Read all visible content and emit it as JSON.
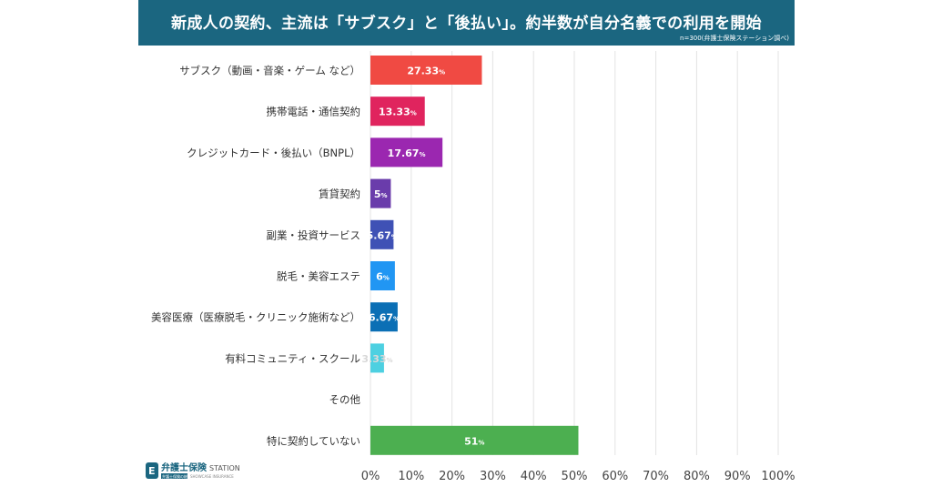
{
  "header": {
    "title": "新成人の契約、主流は「サブスク」と「後払い」。約半数が自分名義での利用を開始",
    "note": "n=300(弁護士保険ステーション調べ)"
  },
  "logo": {
    "text_main": "弁護士保険",
    "text_station": "STATION",
    "text_sub": "弁護士保険の総合サイト",
    "text_sub_en": "SHOWCASE INSURANCE"
  },
  "colors": {
    "header_bg": "#1b6680",
    "grid": "#e3e3e3"
  },
  "chart_data": {
    "type": "bar",
    "orientation": "horizontal",
    "categories": [
      "サブスク（動画・音楽・ゲーム など）",
      "携帯電話・通信契約",
      "クレジットカード・後払い（BNPL）",
      "賃貸契約",
      "副業・投資サービス",
      "脱毛・美容エステ",
      "美容医療（医療脱毛・クリニック施術など）",
      "有料コミュニティ・スクール",
      "その他",
      "特に契約していない"
    ],
    "values": [
      27.33,
      13.33,
      17.67,
      5,
      5.67,
      6,
      6.67,
      3.33,
      0,
      51
    ],
    "value_labels": [
      "27.33",
      "13.33",
      "17.67",
      "5",
      "5.67",
      "6",
      "6.67",
      "3.33",
      "",
      "51"
    ],
    "unit": "%",
    "colors": [
      "#f04a43",
      "#e0245e",
      "#9b27b0",
      "#6a3cab",
      "#3f51b5",
      "#2196f3",
      "#0b6fb5",
      "#4dd0e1",
      "#cccccc",
      "#4caf50"
    ],
    "xlim": [
      0,
      100
    ],
    "xticks": [
      "0%",
      "10%",
      "20%",
      "30%",
      "40%",
      "50%",
      "60%",
      "70%",
      "80%",
      "90%",
      "100%"
    ],
    "grid": true
  }
}
